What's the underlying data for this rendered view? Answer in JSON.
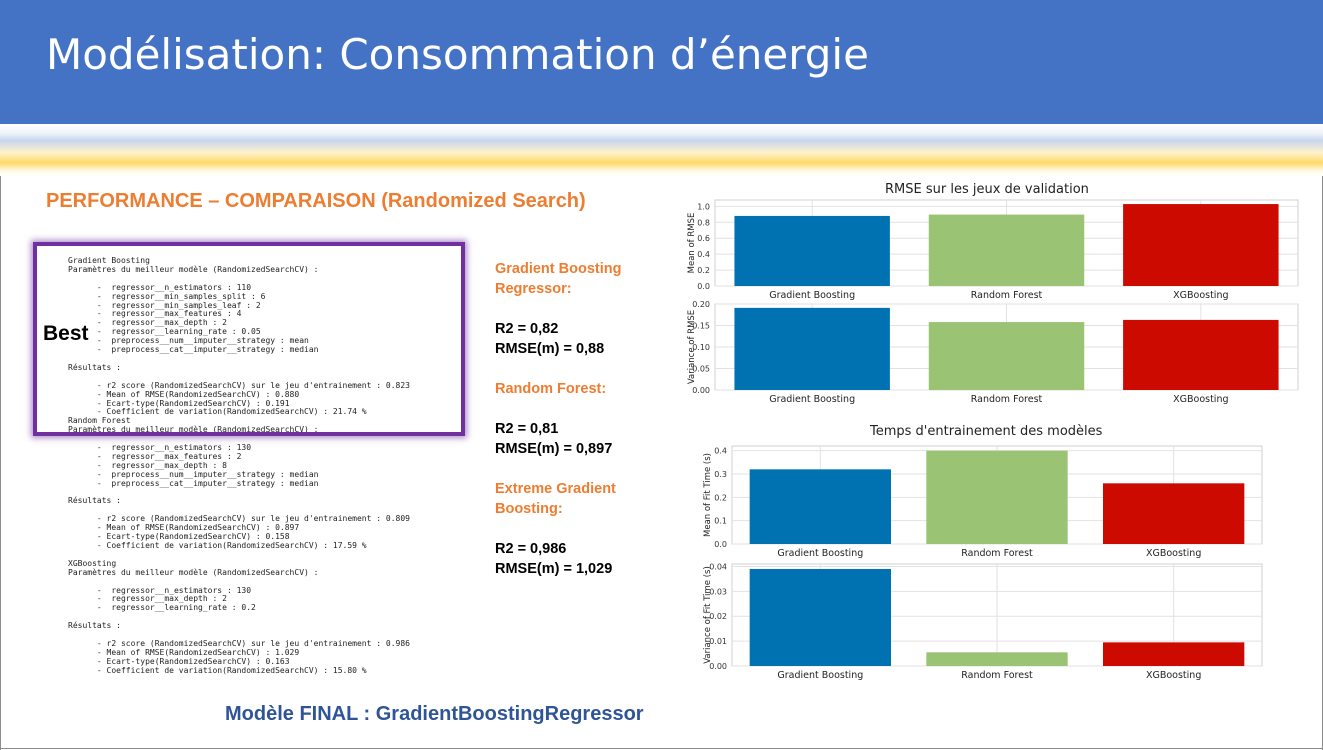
{
  "header": {
    "title": "Modélisation: Consommation d’énergie"
  },
  "section_title": "PERFORMANCE – COMPARAISON (Randomized Search)",
  "best_label": "Best",
  "code_output": [
    "Gradient Boosting",
    "Paramètres du meilleur modèle (RandomizedSearchCV) :",
    "",
    "      -  regressor__n_estimators : 110",
    "      -  regressor__min_samples_split : 6",
    "      -  regressor__min_samples_leaf : 2",
    "      -  regressor__max_features : 4",
    "      -  regressor__max_depth : 2",
    "      -  regressor__learning_rate : 0.05",
    "      -  preprocess__num__imputer__strategy : mean",
    "      -  preprocess__cat__imputer__strategy : median",
    "",
    "Résultats :",
    "",
    "      - r2 score (RandomizedSearchCV) sur le jeu d'entrainement : 0.823",
    "      - Mean of RMSE(RandomizedSearchCV) : 0.880",
    "      - Ecart-type(RandomizedSearchCV) : 0.191",
    "      - Coefficient de variation(RandomizedSearchCV) : 21.74 %",
    "Random Forest",
    "Paramètres du meilleur modèle (RandomizedSearchCV) :",
    "",
    "      -  regressor__n_estimators : 130",
    "      -  regressor__max_features : 2",
    "      -  regressor__max_depth : 8",
    "      -  preprocess__num__imputer__strategy : median",
    "      -  preprocess__cat__imputer__strategy : median",
    "",
    "Résultats :",
    "",
    "      - r2 score (RandomizedSearchCV) sur le jeu d'entrainement : 0.809",
    "      - Mean of RMSE(RandomizedSearchCV) : 0.897",
    "      - Ecart-type(RandomizedSearchCV) : 0.158",
    "      - Coefficient de variation(RandomizedSearchCV) : 17.59 %",
    "",
    "XGBoosting",
    "Paramètres du meilleur modèle (RandomizedSearchCV) :",
    "",
    "      -  regressor__n_estimators : 130",
    "      -  regressor__max_depth : 2",
    "      -  regressor__learning_rate : 0.2",
    "",
    "Résultats :",
    "",
    "      - r2 score (RandomizedSearchCV) sur le jeu d'entrainement : 0.986",
    "      - Mean of RMSE(RandomizedSearchCV) : 1.029",
    "      - Ecart-type(RandomizedSearchCV) : 0.163",
    "      - Coefficient de variation(RandomizedSearchCV) : 15.80 %"
  ],
  "summary": {
    "gb_title_1": "Gradient Boosting",
    "gb_title_2": "Regressor:",
    "gb_r2": "R2 = 0,82",
    "gb_rmse": "RMSE(m)  = 0,88",
    "rf_title": "Random Forest:",
    "rf_r2": "R2 = 0,81",
    "rf_rmse": "RMSE(m) = 0,897",
    "xgb_title_1": "Extreme Gradient",
    "xgb_title_2": "Boosting:",
    "xgb_r2": "R2 = 0,986",
    "xgb_rmse": "RMSE(m) = 1,029"
  },
  "final_model": "Modèle FINAL : GradientBoostingRegressor",
  "colors": {
    "header": "#4472c4",
    "accent_orange": "#ed7d31",
    "best_border": "#7030a0",
    "final_text": "#2f5597"
  },
  "chart_data": [
    {
      "type": "bar",
      "title": "RMSE sur les jeux de validation",
      "ylabel": "Mean of RMSE",
      "categories": [
        "Gradient Boosting",
        "Random Forest",
        "XGBoosting"
      ],
      "values": [
        0.88,
        0.897,
        1.029
      ],
      "colors": [
        "#0072b2",
        "#9bc374",
        "#cc0a00"
      ],
      "ylim": [
        0,
        1.08
      ],
      "yticks": [
        "0.0",
        "0.2",
        "0.4",
        "0.6",
        "0.8",
        "1.0"
      ],
      "ytick_values": [
        0,
        0.2,
        0.4,
        0.6,
        0.8,
        1.0
      ],
      "grid": true
    },
    {
      "type": "bar",
      "title": "",
      "ylabel": "Variance of RMSE",
      "categories": [
        "Gradient Boosting",
        "Random Forest",
        "XGBoosting"
      ],
      "values": [
        0.191,
        0.158,
        0.163
      ],
      "colors": [
        "#0072b2",
        "#9bc374",
        "#cc0a00"
      ],
      "ylim": [
        0,
        0.2
      ],
      "yticks": [
        "0.00",
        "0.05",
        "0.10",
        "0.15",
        "0.20"
      ],
      "ytick_values": [
        0,
        0.05,
        0.1,
        0.15,
        0.2
      ],
      "grid": true
    },
    {
      "type": "bar",
      "title": "Temps d'entrainement des modèles",
      "ylabel": "Mean of Fit Time (s)",
      "categories": [
        "Gradient Boosting",
        "Random Forest",
        "XGBoosting"
      ],
      "values": [
        0.32,
        0.4,
        0.26
      ],
      "colors": [
        "#0072b2",
        "#9bc374",
        "#cc0a00"
      ],
      "ylim": [
        0,
        0.42
      ],
      "yticks": [
        "0.0",
        "0.1",
        "0.2",
        "0.3",
        "0.4"
      ],
      "ytick_values": [
        0,
        0.1,
        0.2,
        0.3,
        0.4
      ],
      "grid": true
    },
    {
      "type": "bar",
      "title": "",
      "ylabel": "Variance of Fit Time (s)",
      "categories": [
        "Gradient Boosting",
        "Random Forest",
        "XGBoosting"
      ],
      "values": [
        0.039,
        0.0055,
        0.0095
      ],
      "colors": [
        "#0072b2",
        "#9bc374",
        "#cc0a00"
      ],
      "ylim": [
        0,
        0.041
      ],
      "yticks": [
        "0.00",
        "0.01",
        "0.02",
        "0.03",
        "0.04"
      ],
      "ytick_values": [
        0,
        0.01,
        0.02,
        0.03,
        0.04
      ],
      "grid": true
    }
  ]
}
